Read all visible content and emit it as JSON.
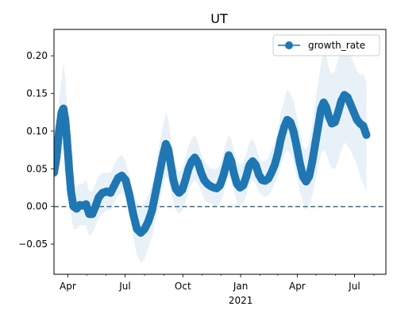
{
  "chart_data": {
    "type": "line",
    "title": "UT",
    "xlabel": "",
    "ylabel": "",
    "x_start": "2020-03-10",
    "x_end": "2021-08-20",
    "xlim": [
      "2020-03-10",
      "2021-08-20"
    ],
    "ylim": [
      -0.09,
      0.235
    ],
    "grid": false,
    "legend_position": "top-right",
    "x_ticks": [
      {
        "date": "2020-04-01",
        "label": "Apr"
      },
      {
        "date": "2020-07-01",
        "label": "Jul"
      },
      {
        "date": "2020-10-01",
        "label": "Oct"
      },
      {
        "date": "2021-01-01",
        "label": "Jan",
        "sublabel": "2021"
      },
      {
        "date": "2021-04-01",
        "label": "Apr"
      },
      {
        "date": "2021-07-01",
        "label": "Jul"
      }
    ],
    "y_ticks": [
      -0.05,
      0.0,
      0.05,
      0.1,
      0.15,
      0.2
    ],
    "y_tick_labels": [
      "−0.05",
      "0.00",
      "0.05",
      "0.10",
      "0.15",
      "0.20"
    ],
    "reference_line": {
      "y": 0.0,
      "style": "dashed",
      "color": "#1f77b4"
    },
    "series": [
      {
        "name": "growth_rate",
        "color": "#1f77b4",
        "marker": "circle",
        "band_color": "#1f77b4",
        "band_opacity": 0.1,
        "points": [
          [
            "2020-03-10",
            0.045,
            0.03,
            0.06
          ],
          [
            "2020-03-14",
            0.065,
            0.04,
            0.09
          ],
          [
            "2020-03-18",
            0.1,
            0.07,
            0.14
          ],
          [
            "2020-03-22",
            0.125,
            0.08,
            0.17
          ],
          [
            "2020-03-25",
            0.13,
            0.08,
            0.19
          ],
          [
            "2020-03-28",
            0.115,
            0.07,
            0.17
          ],
          [
            "2020-03-31",
            0.085,
            0.04,
            0.13
          ],
          [
            "2020-04-03",
            0.05,
            0.015,
            0.09
          ],
          [
            "2020-04-06",
            0.02,
            -0.01,
            0.05
          ],
          [
            "2020-04-10",
            0.0,
            -0.03,
            0.03
          ],
          [
            "2020-04-15",
            -0.003,
            -0.03,
            0.025
          ],
          [
            "2020-04-20",
            0.002,
            -0.025,
            0.03
          ],
          [
            "2020-04-25",
            0.001,
            -0.025,
            0.03
          ],
          [
            "2020-04-30",
            0.003,
            -0.025,
            0.035
          ],
          [
            "2020-05-05",
            -0.01,
            -0.04,
            0.02
          ],
          [
            "2020-05-10",
            -0.01,
            -0.035,
            0.02
          ],
          [
            "2020-05-15",
            0.0,
            -0.025,
            0.03
          ],
          [
            "2020-05-20",
            0.012,
            -0.015,
            0.04
          ],
          [
            "2020-05-26",
            0.018,
            -0.01,
            0.045
          ],
          [
            "2020-06-02",
            0.02,
            -0.005,
            0.045
          ],
          [
            "2020-06-08",
            0.018,
            -0.005,
            0.045
          ],
          [
            "2020-06-14",
            0.028,
            0.005,
            0.055
          ],
          [
            "2020-06-20",
            0.038,
            0.015,
            0.065
          ],
          [
            "2020-06-26",
            0.041,
            0.018,
            0.068
          ],
          [
            "2020-07-02",
            0.035,
            0.012,
            0.06
          ],
          [
            "2020-07-08",
            0.015,
            -0.01,
            0.04
          ],
          [
            "2020-07-14",
            -0.01,
            -0.04,
            0.02
          ],
          [
            "2020-07-20",
            -0.03,
            -0.065,
            0.005
          ],
          [
            "2020-07-26",
            -0.035,
            -0.075,
            0.0
          ],
          [
            "2020-08-01",
            -0.03,
            -0.07,
            0.005
          ],
          [
            "2020-08-07",
            -0.02,
            -0.055,
            0.015
          ],
          [
            "2020-08-13",
            -0.005,
            -0.04,
            0.03
          ],
          [
            "2020-08-19",
            0.02,
            -0.015,
            0.055
          ],
          [
            "2020-08-25",
            0.045,
            0.005,
            0.085
          ],
          [
            "2020-08-31",
            0.07,
            0.03,
            0.11
          ],
          [
            "2020-09-04",
            0.083,
            0.04,
            0.125
          ],
          [
            "2020-09-08",
            0.075,
            0.035,
            0.115
          ],
          [
            "2020-09-12",
            0.055,
            0.02,
            0.09
          ],
          [
            "2020-09-16",
            0.035,
            0.005,
            0.065
          ],
          [
            "2020-09-20",
            0.023,
            -0.005,
            0.05
          ],
          [
            "2020-09-25",
            0.018,
            -0.01,
            0.045
          ],
          [
            "2020-09-30",
            0.022,
            -0.005,
            0.05
          ],
          [
            "2020-10-05",
            0.035,
            0.005,
            0.065
          ],
          [
            "2020-10-10",
            0.05,
            0.02,
            0.08
          ],
          [
            "2020-10-15",
            0.06,
            0.03,
            0.09
          ],
          [
            "2020-10-20",
            0.065,
            0.035,
            0.095
          ],
          [
            "2020-10-25",
            0.058,
            0.03,
            0.085
          ],
          [
            "2020-10-30",
            0.045,
            0.02,
            0.07
          ],
          [
            "2020-11-04",
            0.035,
            0.01,
            0.06
          ],
          [
            "2020-11-09",
            0.03,
            0.005,
            0.055
          ],
          [
            "2020-11-14",
            0.027,
            0.005,
            0.05
          ],
          [
            "2020-11-19",
            0.025,
            0.0,
            0.05
          ],
          [
            "2020-11-24",
            0.024,
            0.0,
            0.05
          ],
          [
            "2020-11-29",
            0.028,
            0.005,
            0.055
          ],
          [
            "2020-12-04",
            0.04,
            0.015,
            0.07
          ],
          [
            "2020-12-09",
            0.055,
            0.03,
            0.085
          ],
          [
            "2020-12-13",
            0.068,
            0.04,
            0.095
          ],
          [
            "2020-12-17",
            0.06,
            0.035,
            0.09
          ],
          [
            "2020-12-21",
            0.045,
            0.02,
            0.075
          ],
          [
            "2020-12-26",
            0.03,
            0.005,
            0.06
          ],
          [
            "2020-12-31",
            0.025,
            0.0,
            0.055
          ],
          [
            "2021-01-05",
            0.028,
            0.005,
            0.06
          ],
          [
            "2021-01-10",
            0.04,
            0.015,
            0.07
          ],
          [
            "2021-01-15",
            0.055,
            0.03,
            0.085
          ],
          [
            "2021-01-20",
            0.06,
            0.035,
            0.09
          ],
          [
            "2021-01-25",
            0.055,
            0.03,
            0.08
          ],
          [
            "2021-01-30",
            0.042,
            0.02,
            0.065
          ],
          [
            "2021-02-04",
            0.035,
            0.015,
            0.06
          ],
          [
            "2021-02-09",
            0.034,
            0.012,
            0.06
          ],
          [
            "2021-02-14",
            0.037,
            0.015,
            0.065
          ],
          [
            "2021-02-19",
            0.045,
            0.02,
            0.075
          ],
          [
            "2021-02-24",
            0.055,
            0.03,
            0.085
          ],
          [
            "2021-03-01",
            0.07,
            0.04,
            0.1
          ],
          [
            "2021-03-06",
            0.09,
            0.055,
            0.125
          ],
          [
            "2021-03-11",
            0.105,
            0.07,
            0.14
          ],
          [
            "2021-03-16",
            0.115,
            0.075,
            0.155
          ],
          [
            "2021-03-21",
            0.112,
            0.07,
            0.15
          ],
          [
            "2021-03-26",
            0.1,
            0.06,
            0.14
          ],
          [
            "2021-03-31",
            0.08,
            0.04,
            0.12
          ],
          [
            "2021-04-05",
            0.058,
            0.02,
            0.1
          ],
          [
            "2021-04-10",
            0.04,
            0.005,
            0.08
          ],
          [
            "2021-04-15",
            0.033,
            -0.005,
            0.075
          ],
          [
            "2021-04-20",
            0.04,
            0.0,
            0.085
          ],
          [
            "2021-04-25",
            0.06,
            0.015,
            0.11
          ],
          [
            "2021-04-30",
            0.085,
            0.035,
            0.14
          ],
          [
            "2021-05-05",
            0.11,
            0.055,
            0.17
          ],
          [
            "2021-05-09",
            0.13,
            0.07,
            0.19
          ],
          [
            "2021-05-13",
            0.138,
            0.075,
            0.205
          ],
          [
            "2021-05-17",
            0.132,
            0.07,
            0.2
          ],
          [
            "2021-05-21",
            0.12,
            0.06,
            0.185
          ],
          [
            "2021-05-26",
            0.11,
            0.05,
            0.175
          ],
          [
            "2021-05-31",
            0.112,
            0.05,
            0.18
          ],
          [
            "2021-06-05",
            0.125,
            0.06,
            0.195
          ],
          [
            "2021-06-10",
            0.14,
            0.075,
            0.21
          ],
          [
            "2021-06-15",
            0.148,
            0.085,
            0.215
          ],
          [
            "2021-06-20",
            0.145,
            0.08,
            0.21
          ],
          [
            "2021-06-25",
            0.135,
            0.075,
            0.2
          ],
          [
            "2021-06-30",
            0.125,
            0.065,
            0.19
          ],
          [
            "2021-07-05",
            0.115,
            0.055,
            0.18
          ],
          [
            "2021-07-10",
            0.11,
            0.04,
            0.175
          ],
          [
            "2021-07-15",
            0.107,
            0.03,
            0.175
          ],
          [
            "2021-07-20",
            0.095,
            0.02,
            0.165
          ]
        ]
      }
    ]
  }
}
